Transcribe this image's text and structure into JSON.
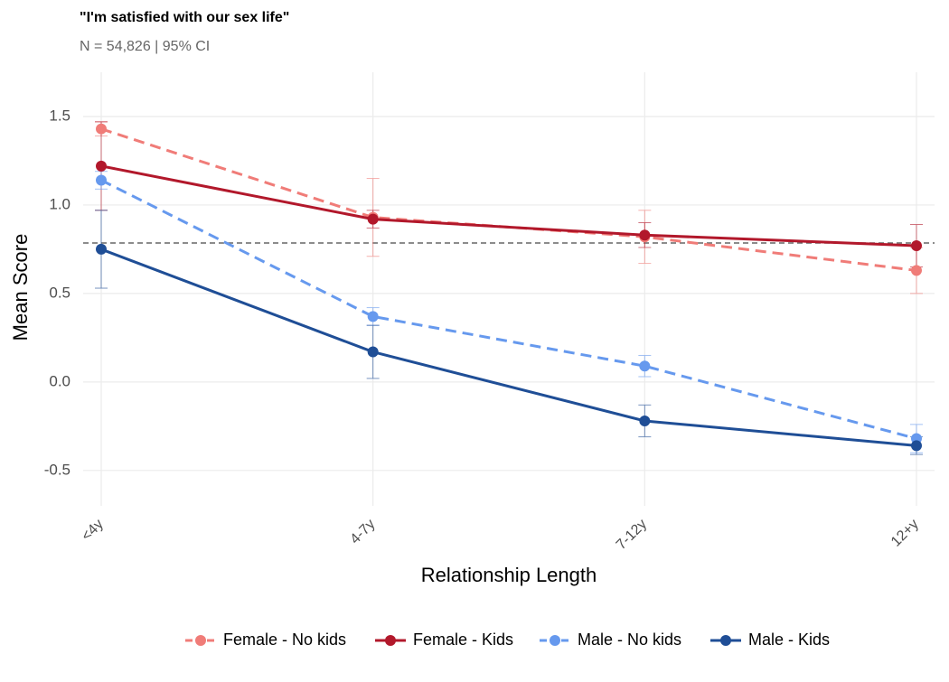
{
  "chart_data": {
    "type": "line",
    "title": "\"I'm satisfied with our sex life\"",
    "subtitle": "N = 54,826 | 95% CI",
    "x_label": "Relationship Length",
    "y_label": "Mean Score",
    "categories": [
      "<4y",
      "4-7y",
      "7-12y",
      "12+y"
    ],
    "ylim": [
      -0.7,
      1.75
    ],
    "yticks": [
      {
        "value": -0.5,
        "label": "-0.5"
      },
      {
        "value": 0,
        "label": "0.0"
      },
      {
        "value": 0.5,
        "label": "0.5"
      },
      {
        "value": 1,
        "label": "1.0"
      },
      {
        "value": 1.5,
        "label": "1.5"
      }
    ],
    "reference_line": 0.785,
    "grid": true,
    "legend": "bottom",
    "series": [
      {
        "name": "Female - No kids",
        "color": "#f07c78",
        "dashed": true,
        "values": [
          1.43,
          0.93,
          0.82,
          0.63
        ],
        "errors": [
          0.04,
          0.22,
          0.15,
          0.13
        ]
      },
      {
        "name": "Female - Kids",
        "color": "#b2182b",
        "dashed": false,
        "values": [
          1.22,
          0.92,
          0.83,
          0.77
        ],
        "errors": [
          0.25,
          0.05,
          0.07,
          0.12
        ]
      },
      {
        "name": "Male - No kids",
        "color": "#6699ee",
        "dashed": true,
        "values": [
          1.14,
          0.37,
          0.09,
          -0.32
        ],
        "errors": [
          0.05,
          0.05,
          0.06,
          0.08
        ]
      },
      {
        "name": "Male - Kids",
        "color": "#1f4e96",
        "dashed": false,
        "values": [
          0.75,
          0.17,
          -0.22,
          -0.36
        ],
        "errors": [
          0.22,
          0.15,
          0.09,
          0.05
        ]
      }
    ]
  }
}
